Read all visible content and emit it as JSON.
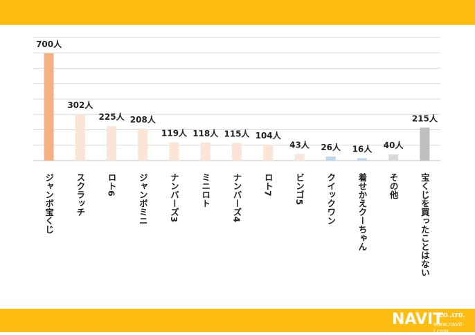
{
  "brand": {
    "name": "NAVIT",
    "company_suffix": "CO.,LTD.",
    "url": "www.navit-j.com",
    "band_color": "#fdbd13"
  },
  "chart_data": {
    "type": "bar",
    "categories": [
      "ジャンボ宝くじ",
      "スクラッチ",
      "ロト6",
      "ジャンボミニ",
      "ナンバーズ3",
      "ミニロト",
      "ナンバーズ4",
      "ロト7",
      "ビンゴ5",
      "クイックワン",
      "着せかえクーちゃん",
      "その他",
      "宝くじを買ったことはない"
    ],
    "values": [
      700,
      302,
      225,
      208,
      119,
      118,
      115,
      104,
      43,
      26,
      16,
      40,
      215
    ],
    "value_labels": [
      "700人",
      "302人",
      "225人",
      "208人",
      "119人",
      "118人",
      "115人",
      "104人",
      "43人",
      "26人",
      "16人",
      "40人",
      "215人"
    ],
    "colors": [
      "#f4b183",
      "#fbe5d6",
      "#fbe5d6",
      "#fbe5d6",
      "#fbe5d6",
      "#fbe5d6",
      "#fbe5d6",
      "#fbe5d6",
      "#fbe5d6",
      "#bdd7ee",
      "#bdd7ee",
      "#d9d9d9",
      "#bfbfbf"
    ],
    "ylim": [
      0,
      700
    ],
    "grid": true,
    "title": "",
    "xlabel": "",
    "ylabel": ""
  }
}
